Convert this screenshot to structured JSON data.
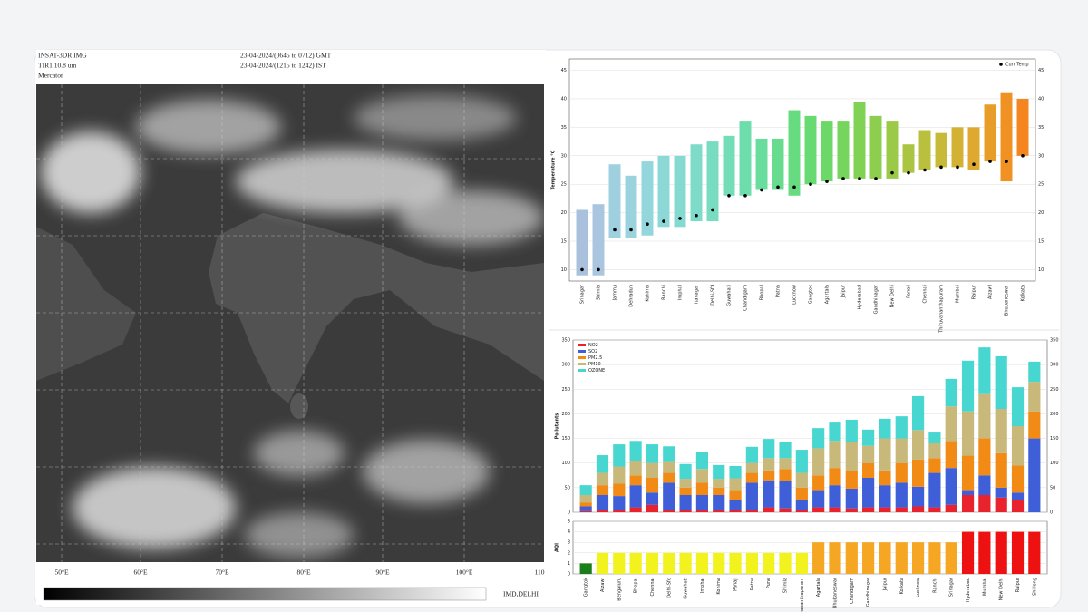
{
  "satellite": {
    "header_left": [
      "INSAT-3DR IMG",
      "TIR1 10.8 um",
      "Mercator"
    ],
    "header_center": [
      "23-04-2024/(0645 to 0712) GMT",
      "23-04-2024/(1215 to 1242) IST"
    ],
    "lon_labels": [
      "50°E",
      "60°E",
      "70°E",
      "80°E",
      "90°E",
      "100°E",
      "110"
    ],
    "credit": "IMD,DELHI"
  },
  "chart_data": [
    {
      "type": "range_bar",
      "y_label": "Temperature °C",
      "categories": [
        "Srinagar",
        "Shimla",
        "Jammu",
        "Dehradun",
        "Kohima",
        "Ranchi",
        "Imphal",
        "Itanagar",
        "Delhi-Sfd",
        "Guwahati",
        "Chandigarh",
        "Bhopal",
        "Patna",
        "Lucknow",
        "Gangtok",
        "Agartala",
        "Jaipur",
        "Hyderabad",
        "Gandhinagar",
        "New Delhi",
        "Panaji",
        "Chennai",
        "Thiruvananthapuram",
        "Mumbai",
        "Raipur",
        "Aizawl",
        "Bhubaneswar",
        "Kolkata"
      ],
      "low": [
        9,
        9,
        15.5,
        15.5,
        16,
        17.5,
        17.5,
        18.5,
        18.5,
        23,
        23,
        24,
        24,
        23,
        25,
        25.5,
        26,
        26,
        26,
        26,
        27,
        27.5,
        28,
        28,
        27.5,
        29,
        25.5,
        30
      ],
      "high": [
        20.5,
        21.5,
        28.5,
        26.5,
        29,
        30,
        30,
        32,
        32.5,
        33.5,
        36,
        33,
        33,
        38,
        37,
        36,
        36,
        39.5,
        37,
        36,
        32,
        34.5,
        34,
        35,
        35,
        39,
        41,
        40
      ],
      "colors": [
        "#a9c1dc",
        "#aac5df",
        "#9fd0e0",
        "#9ad3de",
        "#93d6dc",
        "#8bd8d6",
        "#84dad0",
        "#7edbc9",
        "#78dcc1",
        "#72ddb7",
        "#6cddab",
        "#69dd9d",
        "#67dc8e",
        "#66db80",
        "#67da72",
        "#6bd867",
        "#75d55d",
        "#80d255",
        "#8dce4e",
        "#9bca48",
        "#a9c542",
        "#b8c03d",
        "#c6ba38",
        "#d3b233",
        "#dfa82e",
        "#e99d29",
        "#f09124",
        "#f5851f"
      ],
      "points": {
        "name": "Curr Temp",
        "color": "#000000",
        "values": [
          10,
          10,
          17,
          17,
          18,
          18.5,
          19,
          19.5,
          20.5,
          23,
          23,
          24,
          24.5,
          24.5,
          25,
          25.5,
          26,
          26,
          26,
          27,
          27,
          27.5,
          28,
          28,
          28.5,
          29,
          29,
          30
        ]
      },
      "ylim": [
        8,
        47
      ],
      "yticks": [
        10,
        15,
        20,
        25,
        30,
        35,
        40,
        45
      ],
      "grid": true
    },
    {
      "type": "stacked_bar",
      "y_label": "Pollutants",
      "series": [
        {
          "name": "NO2",
          "color": "#e8232d",
          "values": [
            2,
            5,
            5,
            10,
            15,
            5,
            5,
            5,
            5,
            5,
            5,
            10,
            8,
            5,
            10,
            10,
            8,
            10,
            10,
            10,
            12,
            10,
            15,
            35,
            35,
            30,
            25,
            0
          ]
        },
        {
          "name": "SO2",
          "color": "#3e5fd8",
          "values": [
            10,
            30,
            28,
            45,
            25,
            55,
            30,
            30,
            30,
            20,
            55,
            55,
            55,
            20,
            35,
            45,
            40,
            60,
            45,
            50,
            40,
            70,
            75,
            10,
            40,
            20,
            15,
            150
          ]
        },
        {
          "name": "PM2.5",
          "color": "#f28a16",
          "values": [
            8,
            20,
            25,
            20,
            30,
            20,
            15,
            25,
            15,
            20,
            20,
            20,
            25,
            25,
            30,
            35,
            35,
            30,
            30,
            40,
            55,
            30,
            55,
            70,
            75,
            70,
            55,
            55
          ]
        },
        {
          "name": "PM10",
          "color": "#c8b87a",
          "values": [
            15,
            25,
            35,
            30,
            30,
            22,
            18,
            28,
            18,
            24,
            20,
            25,
            22,
            30,
            55,
            55,
            60,
            35,
            65,
            50,
            60,
            30,
            70,
            90,
            90,
            90,
            80,
            60
          ]
        },
        {
          "name": "OZONE",
          "color": "#48d6d0",
          "values": [
            20,
            36,
            45,
            40,
            38,
            32,
            30,
            35,
            28,
            25,
            33,
            39,
            32,
            47,
            41,
            39,
            45,
            33,
            40,
            45,
            69,
            22,
            56,
            103,
            95,
            107,
            79,
            41
          ]
        }
      ],
      "ylim": [
        0,
        350
      ],
      "yticks": [
        0,
        50,
        100,
        150,
        200,
        250,
        300,
        350
      ],
      "grid": true
    },
    {
      "type": "bar",
      "y_label": "AQI",
      "categories": [
        "Gangtok",
        "Aizawl",
        "Bengaluru",
        "Bhopal",
        "Chennai",
        "Delhi-Sfd",
        "Guwahati",
        "Imphal",
        "Kohima",
        "Panaji",
        "Patna",
        "Pune",
        "Shimla",
        "Thiruvananthapuram",
        "Agartala",
        "Bhubaneswar",
        "Chandigarh",
        "Gandhinagar",
        "Jaipur",
        "Kolkata",
        "Lucknow",
        "Ranchi",
        "Srinagar",
        "Hyderabad",
        "Mumbai",
        "New Delhi",
        "Raipur",
        "Shillong"
      ],
      "values": [
        1,
        2,
        2,
        2,
        2,
        2,
        2,
        2,
        2,
        2,
        2,
        2,
        2,
        2,
        3,
        3,
        3,
        3,
        3,
        3,
        3,
        3,
        3,
        4,
        4,
        4,
        4,
        4
      ],
      "colors": [
        "#1a7f1a",
        "#f2f21e",
        "#f2f21e",
        "#f2f21e",
        "#f2f21e",
        "#f2f21e",
        "#f2f21e",
        "#f2f21e",
        "#f2f21e",
        "#f2f21e",
        "#f2f21e",
        "#f2f21e",
        "#f2f21e",
        "#f2f21e",
        "#f5a623",
        "#f5a623",
        "#f5a623",
        "#f5a623",
        "#f5a623",
        "#f5a623",
        "#f5a623",
        "#f5a623",
        "#f5a623",
        "#ee1111",
        "#ee1111",
        "#ee1111",
        "#ee1111",
        "#ee1111"
      ],
      "ylim": [
        0,
        5
      ],
      "yticks": [
        0,
        1,
        2,
        3,
        4,
        5
      ],
      "grid": true
    }
  ]
}
